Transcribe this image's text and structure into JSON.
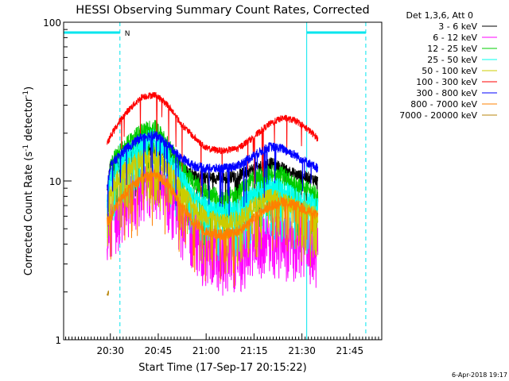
{
  "chart_data": {
    "type": "line",
    "title": "HESSI Observing Summary Count Rates, Corrected",
    "xlabel": "Start Time (17-Sep-17 20:15:22)",
    "ylabel": "Corrected Count Rate (s⁻¹ detector⁻¹)",
    "ylabel_main": "Corrected Count Rate (s",
    "ylabel_mid": " detector",
    "ylabel_end": ")",
    "ylabel_sup": "-1",
    "yscale": "log",
    "ylim": [
      1,
      100
    ],
    "xlim": [
      "20:15:22",
      "21:55:00"
    ],
    "x_ticks": [
      "20:30",
      "20:45",
      "21:00",
      "21:15",
      "21:30",
      "21:45"
    ],
    "y_ticks": [
      "1",
      "10",
      "100"
    ],
    "legend_title": "Det 1,3,6, Att 0",
    "legend_position": "right",
    "date_stamp": "6-Apr-2018 19:17",
    "night_label": "N",
    "colors": {
      "night_bar": "#00e5ee",
      "dashed": "#00e5ee"
    },
    "annotations": {
      "night_intervals": [
        [
          "20:15:22",
          "20:33:00"
        ],
        [
          "21:31:30",
          "21:50:00"
        ]
      ],
      "night_solid_lines": [
        "20:15:22",
        "21:31:30"
      ],
      "night_dashed_lines": [
        "20:33:00",
        "21:50:00"
      ]
    },
    "data_span": [
      "20:29:00",
      "21:36:00"
    ],
    "series": [
      {
        "name": "3 - 6 keV",
        "color": "#000000",
        "noise": 0.09,
        "drop": 0.05,
        "points": [
          [
            "20:29",
            8.5
          ],
          [
            "20:30",
            12.5
          ],
          [
            "20:35",
            14
          ],
          [
            "20:40",
            15.5
          ],
          [
            "20:44",
            16
          ],
          [
            "20:48",
            14.5
          ],
          [
            "20:52",
            12.5
          ],
          [
            "20:56",
            11
          ],
          [
            "21:00",
            10.5
          ],
          [
            "21:05",
            10.5
          ],
          [
            "21:10",
            10.8
          ],
          [
            "21:15",
            12
          ],
          [
            "21:20",
            13
          ],
          [
            "21:24",
            12
          ],
          [
            "21:28",
            11
          ],
          [
            "21:32",
            10.5
          ],
          [
            "21:35",
            10
          ]
        ]
      },
      {
        "name": "6 - 12 keV",
        "color": "#ff00ff",
        "noise": 0.22,
        "drop": 0.35,
        "points": [
          [
            "20:29",
            4
          ],
          [
            "20:30",
            7
          ],
          [
            "20:35",
            9
          ],
          [
            "20:40",
            10.5
          ],
          [
            "20:44",
            11
          ],
          [
            "20:48",
            9.5
          ],
          [
            "20:52",
            7
          ],
          [
            "20:56",
            5.5
          ],
          [
            "21:00",
            4.5
          ],
          [
            "21:05",
            4.2
          ],
          [
            "21:10",
            4.2
          ],
          [
            "21:15",
            4.8
          ],
          [
            "21:20",
            5.5
          ],
          [
            "21:24",
            5.2
          ],
          [
            "21:28",
            5
          ],
          [
            "21:32",
            5
          ],
          [
            "21:35",
            4.5
          ]
        ]
      },
      {
        "name": "12 - 25 keV",
        "color": "#00cc00",
        "noise": 0.12,
        "drop": 0.15,
        "points": [
          [
            "20:29",
            8
          ],
          [
            "20:30",
            13
          ],
          [
            "20:35",
            17
          ],
          [
            "20:40",
            21
          ],
          [
            "20:44",
            22
          ],
          [
            "20:48",
            17
          ],
          [
            "20:52",
            12.5
          ],
          [
            "20:56",
            10
          ],
          [
            "21:00",
            8.5
          ],
          [
            "21:05",
            8
          ],
          [
            "21:10",
            8.5
          ],
          [
            "21:15",
            10.5
          ],
          [
            "21:20",
            11.5
          ],
          [
            "21:24",
            11
          ],
          [
            "21:28",
            9.5
          ],
          [
            "21:32",
            9
          ],
          [
            "21:35",
            8
          ]
        ]
      },
      {
        "name": "25 - 50 keV",
        "color": "#00ffee",
        "noise": 0.14,
        "drop": 0.2,
        "points": [
          [
            "20:29",
            7
          ],
          [
            "20:30",
            11
          ],
          [
            "20:35",
            15
          ],
          [
            "20:40",
            18
          ],
          [
            "20:44",
            19
          ],
          [
            "20:48",
            15
          ],
          [
            "20:52",
            11
          ],
          [
            "20:56",
            8
          ],
          [
            "21:00",
            7
          ],
          [
            "21:05",
            6.5
          ],
          [
            "21:10",
            6.8
          ],
          [
            "21:15",
            8.5
          ],
          [
            "21:20",
            9.5
          ],
          [
            "21:24",
            9
          ],
          [
            "21:28",
            8
          ],
          [
            "21:32",
            7.5
          ],
          [
            "21:35",
            7
          ]
        ]
      },
      {
        "name": "50 - 100 keV",
        "color": "#cccc00",
        "noise": 0.13,
        "drop": 0.18,
        "points": [
          [
            "20:29",
            6
          ],
          [
            "20:30",
            9
          ],
          [
            "20:35",
            12
          ],
          [
            "20:40",
            14
          ],
          [
            "20:44",
            14.5
          ],
          [
            "20:48",
            12
          ],
          [
            "20:52",
            9
          ],
          [
            "20:56",
            7
          ],
          [
            "21:00",
            6
          ],
          [
            "21:05",
            5.5
          ],
          [
            "21:10",
            5.8
          ],
          [
            "21:15",
            7
          ],
          [
            "21:20",
            8
          ],
          [
            "21:24",
            7.5
          ],
          [
            "21:28",
            7
          ],
          [
            "21:32",
            6.5
          ],
          [
            "21:35",
            6
          ]
        ]
      },
      {
        "name": "100 - 300 keV",
        "color": "#ff0000",
        "noise": 0.05,
        "drop": 0.02,
        "points": [
          [
            "20:29",
            17
          ],
          [
            "20:30",
            19
          ],
          [
            "20:35",
            27
          ],
          [
            "20:40",
            34
          ],
          [
            "20:44",
            35
          ],
          [
            "20:48",
            30
          ],
          [
            "20:52",
            23
          ],
          [
            "20:56",
            19
          ],
          [
            "21:00",
            16
          ],
          [
            "21:05",
            15.5
          ],
          [
            "21:10",
            16
          ],
          [
            "21:15",
            19
          ],
          [
            "21:20",
            23
          ],
          [
            "21:24",
            25
          ],
          [
            "21:28",
            24
          ],
          [
            "21:32",
            21
          ],
          [
            "21:35",
            18.5
          ]
        ]
      },
      {
        "name": "300 - 800 keV",
        "color": "#0000ff",
        "noise": 0.07,
        "drop": 0.04,
        "points": [
          [
            "20:29",
            9
          ],
          [
            "20:30",
            12.5
          ],
          [
            "20:35",
            16
          ],
          [
            "20:40",
            19
          ],
          [
            "20:44",
            19.5
          ],
          [
            "20:48",
            17
          ],
          [
            "20:52",
            14
          ],
          [
            "20:56",
            12.5
          ],
          [
            "21:00",
            12
          ],
          [
            "21:05",
            12
          ],
          [
            "21:10",
            12.5
          ],
          [
            "21:15",
            14.5
          ],
          [
            "21:20",
            16.5
          ],
          [
            "21:24",
            16
          ],
          [
            "21:28",
            14.5
          ],
          [
            "21:32",
            13
          ],
          [
            "21:35",
            12
          ]
        ]
      },
      {
        "name": "800 - 7000 keV",
        "color": "#ff8000",
        "noise": 0.08,
        "drop": 0.06,
        "points": [
          [
            "20:29",
            5.5
          ],
          [
            "20:30",
            6
          ],
          [
            "20:35",
            8.5
          ],
          [
            "20:40",
            10.5
          ],
          [
            "20:44",
            11
          ],
          [
            "20:48",
            9.5
          ],
          [
            "20:52",
            7
          ],
          [
            "20:56",
            5.5
          ],
          [
            "21:00",
            4.8
          ],
          [
            "21:05",
            4.6
          ],
          [
            "21:10",
            4.8
          ],
          [
            "21:15",
            5.8
          ],
          [
            "21:20",
            7
          ],
          [
            "21:24",
            7.5
          ],
          [
            "21:28",
            7
          ],
          [
            "21:32",
            6.5
          ],
          [
            "21:35",
            6
          ]
        ]
      },
      {
        "name": "7000 - 20000 keV",
        "color": "#b8860b",
        "noise": 0.04,
        "drop": 0.0,
        "points": [
          [
            "20:29",
            1.9
          ],
          [
            "20:29:30",
            2.0
          ]
        ]
      }
    ]
  }
}
